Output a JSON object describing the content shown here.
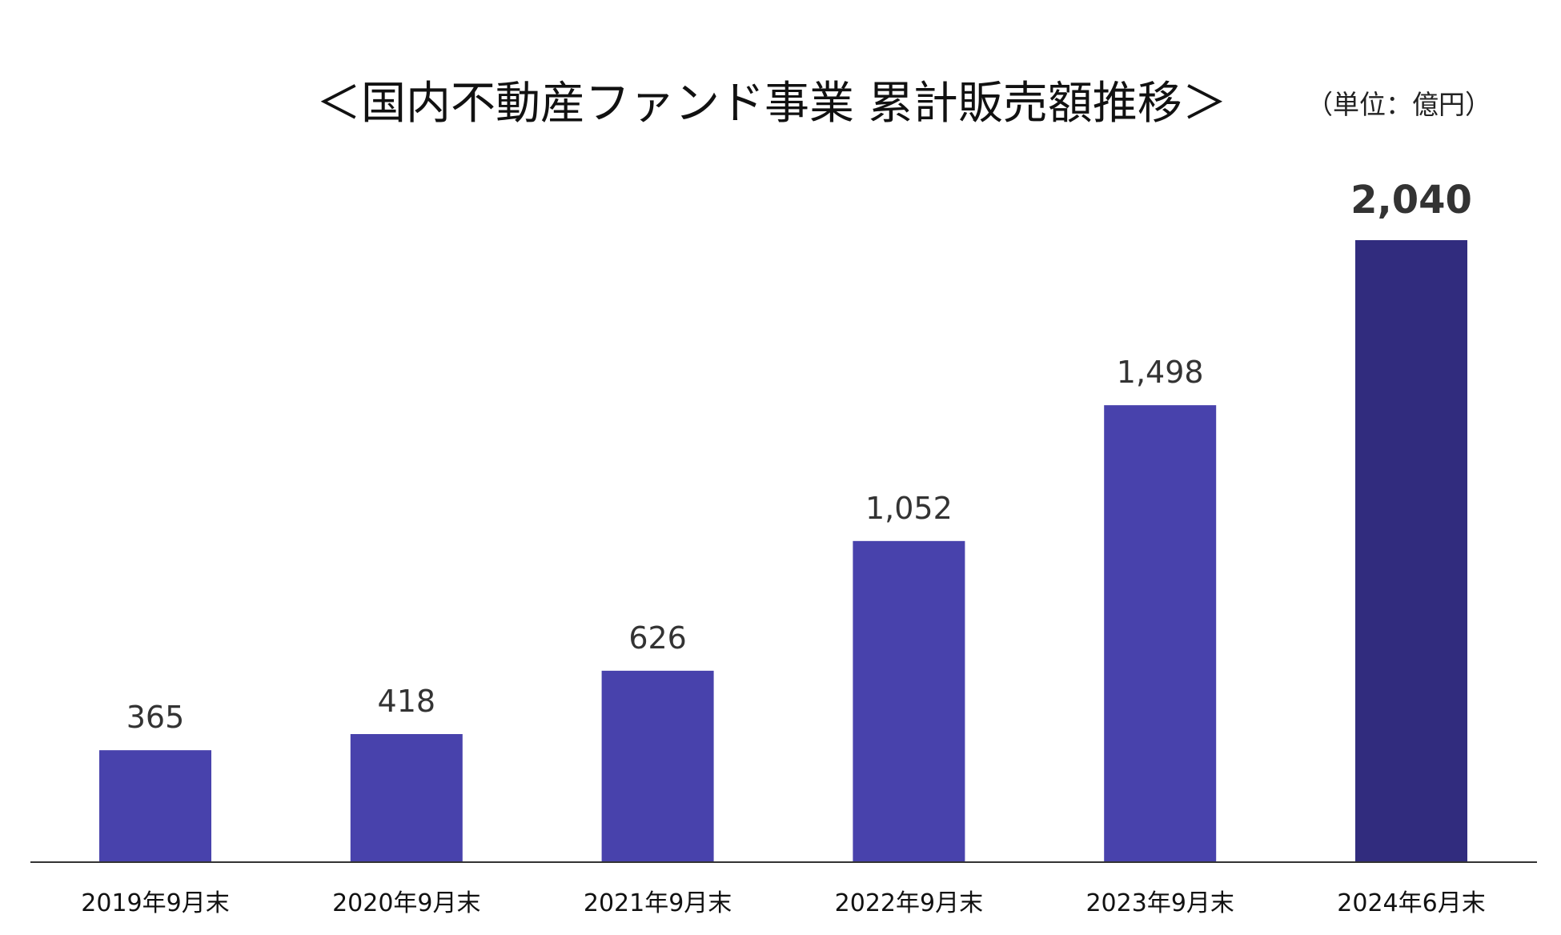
{
  "title": "＜国内不動産ファンド事業 累計販売額推移＞",
  "unit": "（単位：億円）",
  "colors": {
    "bar": "#4842AC",
    "bar_highlight": "#312C7E",
    "axis": "#333333"
  },
  "chart_data": {
    "type": "bar",
    "title": "＜国内不動産ファンド事業 累計販売額推移＞",
    "categories": [
      "2019年9月末",
      "2020年9月末",
      "2021年9月末",
      "2022年9月末",
      "2023年9月末",
      "2024年6月末"
    ],
    "values": [
      365,
      418,
      626,
      1052,
      1498,
      2040
    ],
    "data_labels": [
      "365",
      "418",
      "626",
      "1,052",
      "1,498",
      "2,040"
    ],
    "highlight_index": 5,
    "xlabel": "",
    "ylabel": "",
    "ylim": [
      0,
      2040
    ],
    "grid": false,
    "legend": "none"
  }
}
